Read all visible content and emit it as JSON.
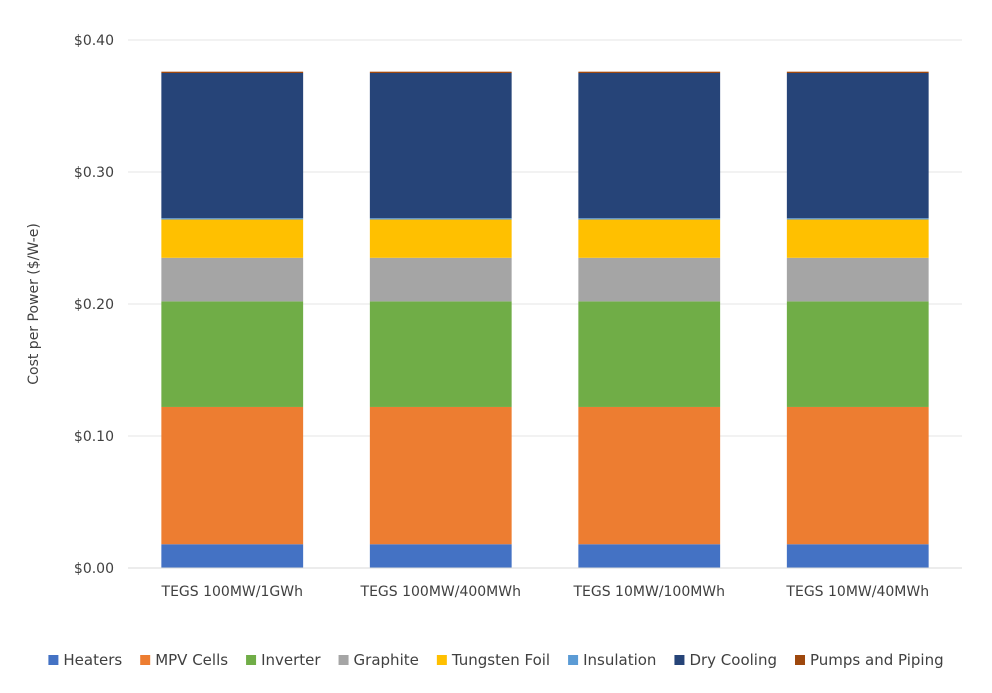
{
  "chart_data": {
    "type": "bar",
    "stacked": true,
    "title": "",
    "xlabel": "",
    "ylabel": "Cost per Power ($/W-e)",
    "ylim": [
      0,
      0.4
    ],
    "yticks": [
      "$0.00",
      "$0.10",
      "$0.20",
      "$0.30",
      "$0.40"
    ],
    "grid": true,
    "legend_position": "bottom",
    "categories": [
      "TEGS 100MW/1GWh",
      "TEGS 100MW/400MWh",
      "TEGS 10MW/100MWh",
      "TEGS 10MW/40MWh"
    ],
    "series": [
      {
        "name": "Heaters",
        "color": "#4472C4",
        "values": [
          0.018,
          0.018,
          0.018,
          0.018
        ]
      },
      {
        "name": "MPV Cells",
        "color": "#ED7D31",
        "values": [
          0.104,
          0.104,
          0.104,
          0.104
        ]
      },
      {
        "name": "Inverter",
        "color": "#70AD47",
        "values": [
          0.08,
          0.08,
          0.08,
          0.08
        ]
      },
      {
        "name": "Graphite",
        "color": "#A5A5A5",
        "values": [
          0.033,
          0.033,
          0.033,
          0.033
        ]
      },
      {
        "name": "Tungsten Foil",
        "color": "#FFC000",
        "values": [
          0.029,
          0.029,
          0.029,
          0.029
        ]
      },
      {
        "name": "Insulation",
        "color": "#5B9BD5",
        "values": [
          0.001,
          0.001,
          0.001,
          0.001
        ]
      },
      {
        "name": "Dry Cooling",
        "color": "#264478",
        "values": [
          0.11,
          0.11,
          0.11,
          0.11
        ]
      },
      {
        "name": "Pumps and Piping",
        "color": "#9E480E",
        "values": [
          0.001,
          0.001,
          0.001,
          0.001
        ]
      }
    ]
  }
}
